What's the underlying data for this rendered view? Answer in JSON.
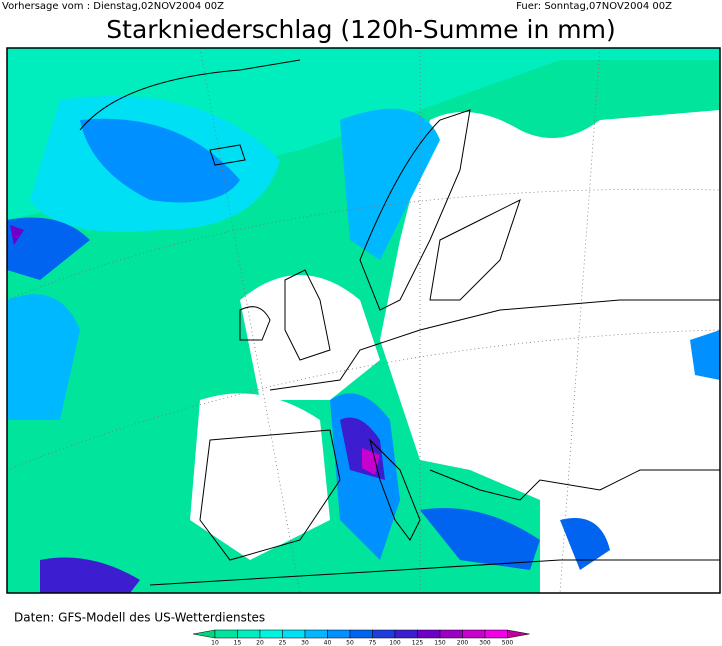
{
  "header": {
    "issued": "Vorhersage vom : Dienstag,02NOV2004 00Z",
    "valid": "Fuer: Sonntag,07NOV2004 00Z",
    "title": "Starkniederschlag (120h-Summe in mm)"
  },
  "footer": {
    "source": "Daten: GFS-Modell des US-Wetterdienstes"
  },
  "legend": {
    "levels": [
      10,
      15,
      20,
      25,
      30,
      40,
      50,
      75,
      100,
      125,
      150,
      200,
      300,
      500
    ],
    "colors": [
      "#00d880",
      "#00e49c",
      "#00eebe",
      "#00f4e0",
      "#00e0f4",
      "#00b8ff",
      "#0090ff",
      "#0064f0",
      "#1e3ce0",
      "#3c1ed0",
      "#6e00c8",
      "#9a00c8",
      "#c800d0",
      "#f000e8",
      "#c0009c"
    ]
  }
}
